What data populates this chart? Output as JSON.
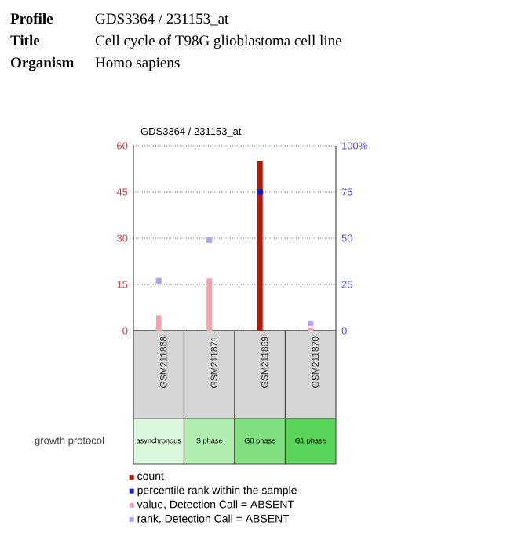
{
  "chart_data": {
    "type": "bar",
    "title": "GDS3364 / 231153_at",
    "categories": [
      "GSM211868",
      "GSM211871",
      "GSM211869",
      "GSM211870"
    ],
    "series": [
      {
        "name": "count",
        "type": "bar",
        "color": "#b01c10",
        "values": [
          null,
          null,
          55,
          null
        ]
      },
      {
        "name": "percentile rank within the sample",
        "type": "scatter",
        "axis": "y2",
        "color": "#1c1cd0",
        "values": [
          null,
          null,
          75,
          null
        ]
      },
      {
        "name": "value, Detection Call = ABSENT",
        "type": "bar",
        "color": "#f4a4ac",
        "values": [
          5,
          17,
          null,
          1
        ]
      },
      {
        "name": "rank, Detection Call = ABSENT",
        "type": "scatter",
        "axis": "y2",
        "color": "#a8a8f0",
        "values": [
          27,
          49,
          null,
          4
        ]
      }
    ],
    "ylim": [
      0,
      60
    ],
    "yticks": [
      0,
      15,
      30,
      45,
      60
    ],
    "y2lim": [
      0,
      100
    ],
    "y2ticks": [
      0,
      25,
      50,
      75,
      {
        "value": 100,
        "label": "100%"
      }
    ],
    "grid": "y",
    "legend": "bottom",
    "marker": "square",
    "annotations": [
      "Profile",
      "GDS3364 / 231153_at",
      "Title",
      "Cell cycle of T98G glioblastoma cell line",
      "Organism",
      "Homo sapiens",
      "growth protocol",
      "asynchronous",
      "S phase",
      "G0 phase",
      "G1 phase"
    ]
  }
}
